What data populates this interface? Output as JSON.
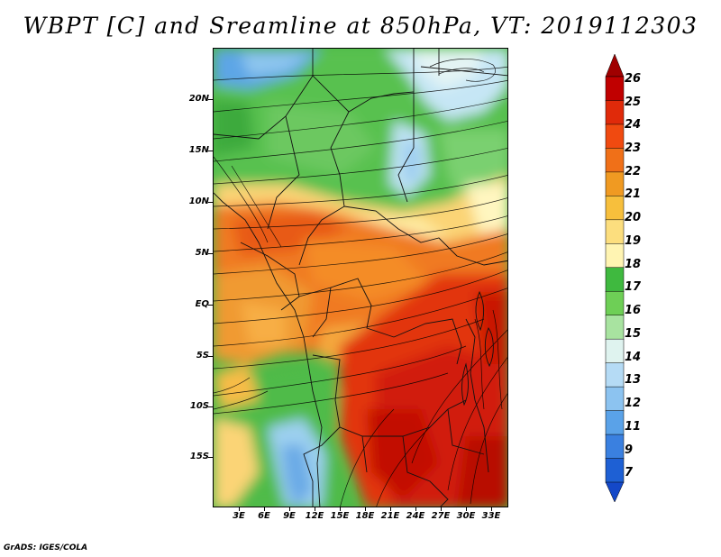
{
  "title": "WBPT [C] and Sreamline at 850hPa, VT: 2019112303",
  "credit": "GrADS: IGES/COLA",
  "map": {
    "latitude_labels": [
      "20N",
      "15N",
      "10N",
      "5N",
      "EQ",
      "5S",
      "10S",
      "15S"
    ],
    "longitude_labels": [
      "3E",
      "6E",
      "9E",
      "12E",
      "15E",
      "18E",
      "21E",
      "24E",
      "27E",
      "30E",
      "33E"
    ],
    "projection": "latitude-longitude",
    "fields": [
      "wet-bulb potential temperature (shaded)",
      "850hPa streamlines"
    ]
  },
  "colorbar": {
    "labels": [
      "26",
      "25",
      "24",
      "23",
      "22",
      "21",
      "20",
      "19",
      "18",
      "17",
      "16",
      "15",
      "14",
      "13",
      "12",
      "11",
      "9",
      "7"
    ],
    "colors": [
      "#a00000",
      "#c00000",
      "#e02a0a",
      "#f04a10",
      "#f07018",
      "#f09a22",
      "#f7bf3c",
      "#fcde7e",
      "#fff4b2",
      "#3fb93f",
      "#6ecf56",
      "#a8e3a0",
      "#dff3ef",
      "#b5dbf5",
      "#8cc3f0",
      "#5aa2e8",
      "#3a80e0",
      "#1e60d4",
      "#1448c8"
    ],
    "extend": "both"
  }
}
